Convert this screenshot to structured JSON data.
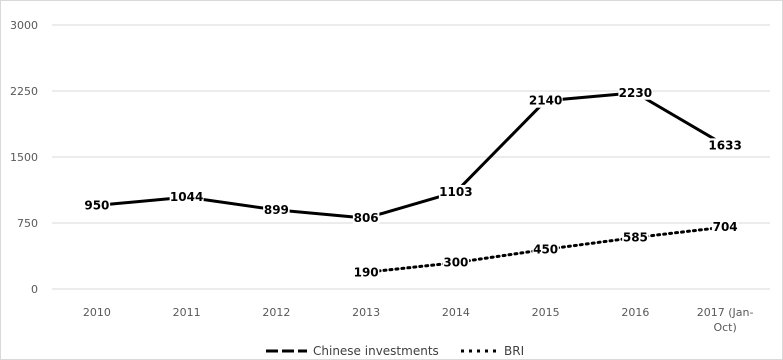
{
  "chart_data": {
    "type": "line",
    "categories": [
      "2010",
      "2011",
      "2012",
      "2013",
      "2014",
      "2015",
      "2016",
      "2017 (Jan-Oct)"
    ],
    "series": [
      {
        "name": "Chinese investments",
        "values": [
          950,
          1044,
          899,
          806,
          1103,
          2140,
          2230,
          1633
        ],
        "labels": [
          "950",
          "1044",
          "899",
          "806",
          "1103",
          "2140",
          "2230",
          "1633"
        ],
        "style": "solid",
        "color": "#000000"
      },
      {
        "name": "BRI",
        "values": [
          null,
          null,
          null,
          190,
          300,
          450,
          585,
          704
        ],
        "labels": [
          "",
          "",
          "",
          "190",
          "300",
          "450",
          "585",
          "704"
        ],
        "style": "dotted",
        "color": "#000000"
      }
    ],
    "yticks": [
      "0",
      "750",
      "1500",
      "2250",
      "3000"
    ],
    "ylim": [
      0,
      3000
    ],
    "grid": "horizontal",
    "legend": "bottom"
  }
}
